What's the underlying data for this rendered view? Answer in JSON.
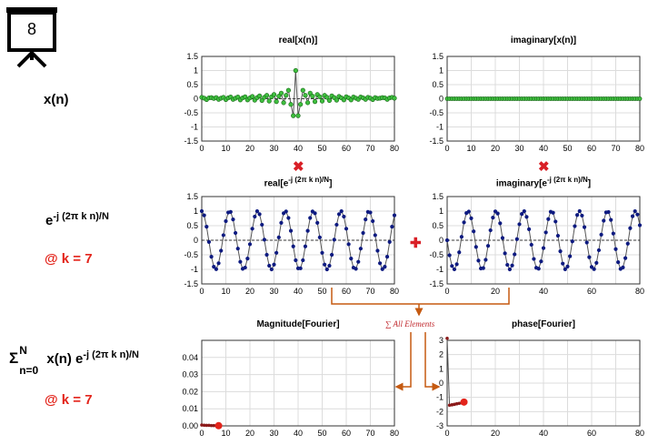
{
  "slide_number": "8",
  "rows": {
    "x": {
      "label": "x(n)"
    },
    "kernel": {
      "base": "e",
      "exponent": "-j (2π k n)/N",
      "k_label": "@ k = 7"
    },
    "sum": {
      "sigma": "Σ",
      "sup": "N",
      "sub": "n=0",
      "body": " x(n) e",
      "exponent": "-j (2π k n)/N",
      "k_label": "@ k = 7"
    }
  },
  "titles": {
    "real_x": "real[x(n)]",
    "imag_x": "imaginary[x(n)]",
    "real_e_base": "real[e",
    "real_e_exp": "-j (2π k n)/N",
    "real_e_close": "]",
    "imag_e_base": "imaginary[e",
    "imag_e_exp": "-j (2π k n)/N",
    "imag_e_close": "]",
    "magnitude": "Magnitude[Fourier]",
    "phase": "phase[Fourier]"
  },
  "operators": {
    "multiply": "✖",
    "plus": "✚"
  },
  "sum_label": "∑ All Elements",
  "colors": {
    "green": "#1a9a1a",
    "navy": "#0d1a80",
    "red": "#e3241b",
    "orange": "#c55a11",
    "grid": "#dcdcdc"
  },
  "chart_data": [
    {
      "id": "real_x",
      "type": "line",
      "title": "real[x(n)]",
      "xlim": [
        0,
        80
      ],
      "ylim": [
        -1.5,
        1.5
      ],
      "xticks": [
        0,
        10,
        20,
        30,
        40,
        50,
        60,
        70,
        80
      ],
      "yticks": [
        1.5,
        1,
        0.5,
        0,
        -0.5,
        -1,
        -1.5
      ],
      "n": 81,
      "series_color": "#1a9a1a",
      "y": [
        0.05,
        0.02,
        -0.03,
        0.03,
        0.04,
        0.01,
        0.04,
        -0.02,
        0.02,
        0.05,
        -0.03,
        0.03,
        0.06,
        -0.02,
        0.02,
        0.06,
        -0.04,
        0.03,
        0.07,
        -0.04,
        0.03,
        0.08,
        -0.05,
        0.04,
        0.1,
        -0.06,
        0.05,
        0.12,
        -0.08,
        0.07,
        0.15,
        -0.1,
        0.09,
        0.2,
        -0.14,
        0.12,
        0.3,
        -0.2,
        -0.6,
        1.0,
        -0.6,
        -0.2,
        0.3,
        0.12,
        -0.14,
        0.2,
        0.09,
        -0.1,
        0.15,
        0.07,
        -0.08,
        0.12,
        0.05,
        -0.06,
        0.1,
        0.04,
        -0.05,
        0.08,
        0.03,
        -0.04,
        0.07,
        0.03,
        -0.04,
        0.06,
        0.02,
        -0.02,
        0.06,
        0.03,
        -0.02,
        0.05,
        0.02,
        -0.03,
        0.04,
        0.01,
        0.02,
        0.04,
        0.03,
        -0.02,
        0.03,
        0.05,
        0.02
      ]
    },
    {
      "id": "imag_x",
      "type": "line",
      "title": "imaginary[x(n)]",
      "xlim": [
        0,
        80
      ],
      "ylim": [
        -1.5,
        1.5
      ],
      "xticks": [
        0,
        10,
        20,
        30,
        40,
        50,
        60,
        70,
        80
      ],
      "yticks": [
        1.5,
        1,
        0.5,
        0,
        -0.5,
        -1,
        -1.5
      ],
      "n": 81,
      "series_color": "#1a9a1a",
      "constant": 0
    },
    {
      "id": "real_e",
      "type": "line",
      "title": "real[e^-j (2π k n)/N]",
      "xlim": [
        0,
        80
      ],
      "ylim": [
        -1.5,
        1.5
      ],
      "xticks": [
        0,
        10,
        20,
        30,
        40,
        50,
        60,
        70,
        80
      ],
      "yticks": [
        1.5,
        1,
        0.5,
        0,
        -0.5,
        -1,
        -1.5
      ],
      "n": 81,
      "series_color": "#0d1a80",
      "function": "cos(2*pi*7*n/81)",
      "k": 7,
      "N": 81
    },
    {
      "id": "imag_e",
      "type": "line",
      "title": "imaginary[e^-j (2π k n)/N]",
      "xlim": [
        0,
        80
      ],
      "ylim": [
        -1.5,
        1.5
      ],
      "xticks": [
        0,
        20,
        40,
        60,
        80
      ],
      "yticks": [
        1.5,
        1,
        0.5,
        0,
        -0.5,
        -1,
        -1.5
      ],
      "n": 81,
      "series_color": "#0d1a80",
      "function": "-sin(2*pi*7*n/81)",
      "k": 7,
      "N": 81
    },
    {
      "id": "magnitude",
      "type": "line",
      "title": "Magnitude[Fourier]",
      "xlim": [
        0,
        80
      ],
      "ylim": [
        0,
        0.05
      ],
      "xticks": [
        0,
        10,
        20,
        30,
        40,
        50,
        60,
        70,
        80
      ],
      "yticks": [
        0.04,
        0.03,
        0.02,
        0.01,
        0
      ],
      "x": [
        0,
        1,
        2,
        3,
        4,
        5,
        6,
        7
      ],
      "y": [
        0.0005,
        0.0004,
        0.0003,
        0.0003,
        0.0002,
        0.0002,
        0.0002,
        0.0001
      ],
      "highlight": {
        "x": 7,
        "y": 0.0001
      }
    },
    {
      "id": "phase",
      "type": "line",
      "title": "phase[Fourier]",
      "xlim": [
        0,
        80
      ],
      "ylim": [
        -3,
        3
      ],
      "xticks": [
        0,
        20,
        40,
        60,
        80
      ],
      "yticks": [
        3,
        2,
        1,
        0,
        -1,
        -2,
        -3
      ],
      "x": [
        0,
        1,
        2,
        3,
        4,
        5,
        6,
        7
      ],
      "y": [
        3.14,
        -1.55,
        -1.52,
        -1.49,
        -1.45,
        -1.42,
        -1.38,
        -1.33
      ],
      "highlight": {
        "x": 7,
        "y": -1.33
      }
    }
  ]
}
